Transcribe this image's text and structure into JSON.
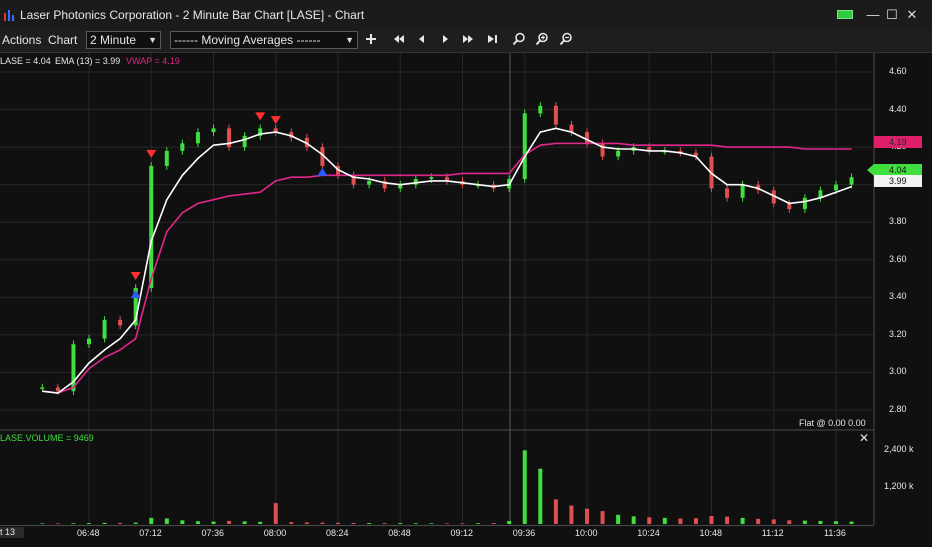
{
  "window": {
    "title": "Laser Photonics Corporation - 2 Minute Bar Chart [LASE] - Chart",
    "status_color": "#2ecc40",
    "minimize_glyph": "—",
    "maximize_glyph": "☐",
    "close_glyph": "✕"
  },
  "toolbar": {
    "menu_actions": "Actions",
    "menu_chart": "Chart",
    "interval": "2 Minute",
    "indicator_dash_left": "------",
    "indicator_label": "Moving Averages",
    "indicator_dash_right": "------",
    "add_icon": "plus-icon",
    "nav_icons": [
      "skip-back-icon",
      "step-back-icon",
      "step-forward-icon",
      "fast-forward-icon",
      "skip-end-icon"
    ],
    "zoom_icons": [
      "zoom-icon",
      "zoom-in-icon",
      "zoom-out-icon"
    ]
  },
  "chart": {
    "legend_lase": "LASE = 4.04",
    "legend_ema": "EMA (13) = 3.99",
    "legend_vwap": "VWAP = 4.19",
    "price_last": "4.04",
    "price_ema": "3.99",
    "price_vwap": "4.19",
    "flat_status": "Flat @ 0.00  0.00",
    "volume_legend": "LASE.VOLUME = 9469",
    "x_start_label": "t 13",
    "colors": {
      "up": "#3fdf3f",
      "down": "#e05050",
      "ema": "#ffffff",
      "vwap": "#e0288a",
      "last_price": "#3fdf3f",
      "marker_sell": "#ff3030",
      "marker_buy": "#2a5cff"
    }
  },
  "chart_data": {
    "type": "line",
    "title": "Laser Photonics Corporation - 2 Minute Bar Chart [LASE]",
    "x_ticks": [
      "06:48",
      "07:12",
      "07:36",
      "08:00",
      "08:24",
      "08:48",
      "09:12",
      "09:36",
      "10:00",
      "10:24",
      "10:48",
      "11:12",
      "11:36"
    ],
    "y_ticks": [
      "4.60",
      "4.40",
      "4.20",
      "4.00",
      "3.80",
      "3.60",
      "3.40",
      "3.20",
      "3.00",
      "2.80"
    ],
    "ylim": [
      2.72,
      4.68
    ],
    "volume_ticks": [
      "2,400 k",
      "1,200 k"
    ],
    "x": [
      "06:30",
      "06:36",
      "06:42",
      "06:48",
      "06:54",
      "07:00",
      "07:06",
      "07:12",
      "07:18",
      "07:24",
      "07:30",
      "07:36",
      "07:42",
      "07:48",
      "07:54",
      "08:00",
      "08:06",
      "08:12",
      "08:18",
      "08:24",
      "08:30",
      "08:36",
      "08:42",
      "08:48",
      "08:54",
      "09:00",
      "09:06",
      "09:12",
      "09:18",
      "09:24",
      "09:30",
      "09:36",
      "09:42",
      "09:48",
      "09:54",
      "10:00",
      "10:06",
      "10:12",
      "10:18",
      "10:24",
      "10:30",
      "10:36",
      "10:42",
      "10:48",
      "10:54",
      "11:00",
      "11:06",
      "11:12",
      "11:18",
      "11:24",
      "11:30",
      "11:36",
      "11:42"
    ],
    "series": [
      {
        "name": "LASE",
        "values": [
          2.92,
          2.9,
          3.15,
          3.18,
          3.28,
          3.25,
          3.45,
          4.1,
          4.18,
          4.22,
          4.28,
          4.3,
          4.2,
          4.26,
          4.3,
          4.28,
          4.25,
          4.2,
          4.1,
          4.05,
          4.0,
          4.02,
          3.98,
          4.0,
          4.03,
          4.04,
          4.02,
          4.0,
          4.0,
          3.98,
          4.03,
          4.38,
          4.42,
          4.32,
          4.28,
          4.22,
          4.15,
          4.18,
          4.2,
          4.18,
          4.18,
          4.17,
          4.15,
          3.98,
          3.93,
          4.0,
          3.97,
          3.9,
          3.87,
          3.93,
          3.97,
          4.0,
          4.04
        ]
      },
      {
        "name": "EMA (13)",
        "values": [
          2.9,
          2.89,
          2.95,
          3.05,
          3.12,
          3.18,
          3.28,
          3.7,
          3.92,
          4.05,
          4.14,
          4.21,
          4.22,
          4.24,
          4.27,
          4.28,
          4.26,
          4.22,
          4.16,
          4.08,
          4.04,
          4.03,
          4.01,
          4.0,
          4.01,
          4.02,
          4.02,
          4.01,
          4.0,
          3.99,
          4.0,
          4.15,
          4.28,
          4.3,
          4.28,
          4.24,
          4.2,
          4.19,
          4.19,
          4.18,
          4.18,
          4.17,
          4.15,
          4.06,
          4.0,
          4.0,
          3.98,
          3.94,
          3.9,
          3.91,
          3.93,
          3.96,
          3.99
        ]
      },
      {
        "name": "VWAP",
        "values": [
          2.9,
          2.89,
          2.92,
          3.02,
          3.08,
          3.12,
          3.18,
          3.5,
          3.75,
          3.85,
          3.9,
          3.92,
          3.94,
          3.95,
          3.96,
          4.02,
          4.04,
          4.04,
          4.05,
          4.05,
          4.05,
          4.05,
          4.05,
          4.05,
          4.05,
          4.05,
          4.05,
          4.06,
          4.06,
          4.06,
          4.06,
          4.16,
          4.21,
          4.22,
          4.22,
          4.22,
          4.22,
          4.22,
          4.21,
          4.21,
          4.21,
          4.21,
          4.21,
          4.21,
          4.2,
          4.2,
          4.2,
          4.2,
          4.2,
          4.19,
          4.19,
          4.19,
          4.19
        ]
      }
    ],
    "volume": [
      20,
      20,
      25,
      30,
      40,
      35,
      45,
      200,
      180,
      120,
      90,
      80,
      100,
      85,
      70,
      680,
      60,
      50,
      45,
      40,
      35,
      30,
      28,
      30,
      25,
      22,
      20,
      20,
      25,
      30,
      100,
      2400,
      1800,
      800,
      600,
      500,
      420,
      300,
      250,
      220,
      200,
      180,
      190,
      260,
      240,
      200,
      170,
      150,
      120,
      110,
      100,
      90,
      80
    ],
    "grid": true,
    "legend": "top-left"
  }
}
